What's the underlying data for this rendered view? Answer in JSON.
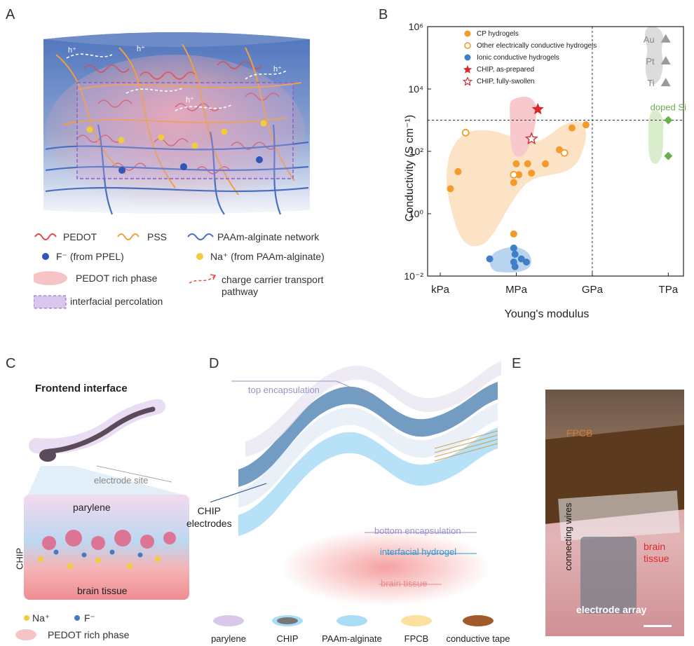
{
  "panels": {
    "a": {
      "letter": "A"
    },
    "b": {
      "letter": "B"
    },
    "c": {
      "letter": "C"
    },
    "d": {
      "letter": "D"
    },
    "e": {
      "letter": "E"
    }
  },
  "panel_a": {
    "hole_label": "h⁺",
    "legend": {
      "pedot": "PEDOT",
      "pss": "PSS",
      "network": "PAAm-alginate network",
      "fluoride": "F⁻ (from PPEL)",
      "sodium": "Na⁺ (from PAAm-alginate)",
      "rich_phase": "PEDOT rich phase",
      "transport_line1": "charge carrier transport",
      "transport_line2": "pathway",
      "percolation": "interfacial percolation"
    },
    "colors": {
      "pedot": "#e0474c",
      "pss": "#f0a040",
      "network": "#4a6fc0",
      "fluoride": "#2f56b8",
      "sodium": "#f2cc3c",
      "rich_phase": "#f6c4c4",
      "percolation": "#b8a0d8"
    }
  },
  "chart_data": {
    "type": "scatter",
    "xlabel": "Young's modulus",
    "ylabel": "Conductivity (S cm⁻¹)",
    "x_scale": "log",
    "y_scale": "log",
    "x_ticks": [
      "kPa",
      "MPa",
      "GPa",
      "TPa"
    ],
    "y_ticks": [
      "10⁻²",
      "10⁰",
      "10²",
      "10⁴",
      "10⁶"
    ],
    "xlim_log10_pa": [
      2.5,
      12.6
    ],
    "ylim_log10": [
      -2,
      6
    ],
    "reference_lines": {
      "x_log10_pa": 9,
      "y_log10": 3
    },
    "legend_position": "top-left",
    "legend": [
      "CP hydrogels",
      "Other electrically conductive hydrogels",
      "Ionic conductive hydrogels",
      "CHIP, as-prepared",
      "CHIP, fully-swollen"
    ],
    "series": [
      {
        "name": "CP hydrogels",
        "marker": "filled-circle",
        "color": "#f39a2a",
        "points": [
          [
            3.4,
            0.8
          ],
          [
            3.7,
            1.35
          ],
          [
            5.9,
            1.0
          ],
          [
            6.0,
            1.6
          ],
          [
            6.1,
            1.25
          ],
          [
            6.45,
            1.6
          ],
          [
            6.6,
            1.3
          ],
          [
            7.15,
            1.6
          ],
          [
            7.7,
            2.05
          ],
          [
            8.2,
            2.75
          ],
          [
            8.75,
            2.85
          ],
          [
            5.9,
            -0.65
          ]
        ]
      },
      {
        "name": "Other electrically conductive hydrogels",
        "marker": "open-circle",
        "color": "#f39a2a",
        "points": [
          [
            4.0,
            2.6
          ],
          [
            5.9,
            1.25
          ],
          [
            7.9,
            1.95
          ]
        ]
      },
      {
        "name": "Ionic conductive hydrogels",
        "marker": "filled-circle",
        "color": "#3f7fc8",
        "points": [
          [
            4.95,
            -1.45
          ],
          [
            5.9,
            -1.1
          ],
          [
            5.95,
            -1.3
          ],
          [
            5.9,
            -1.55
          ],
          [
            6.2,
            -1.45
          ],
          [
            6.4,
            -1.55
          ],
          [
            5.95,
            -1.7
          ]
        ]
      },
      {
        "name": "CHIP, as-prepared",
        "marker": "filled-star",
        "color": "#d42a2a",
        "points": [
          [
            6.85,
            3.35
          ]
        ]
      },
      {
        "name": "CHIP, fully-swollen",
        "marker": "open-star",
        "color": "#d42a2a",
        "points": [
          [
            6.6,
            2.4
          ]
        ]
      },
      {
        "name": "Metals",
        "marker": "triangle",
        "color": "#9a9a9a",
        "labels": [
          "Au",
          "Pt",
          "Ti"
        ],
        "points": [
          [
            11.9,
            5.6
          ],
          [
            11.9,
            4.9
          ],
          [
            11.9,
            4.2
          ]
        ]
      },
      {
        "name": "doped Si",
        "marker": "diamond",
        "color": "#6ab04a",
        "points": [
          [
            12.0,
            3.0
          ],
          [
            12.0,
            1.85
          ]
        ]
      }
    ],
    "annotations": [
      "Au",
      "Pt",
      "Ti",
      "doped Si"
    ]
  },
  "panel_c": {
    "title": "Frontend interface",
    "electrode_site": "electrode site",
    "parylene": "parylene",
    "chip": "CHIP",
    "brain_tissue": "brain tissue",
    "legend": {
      "sodium": "Na⁺",
      "fluoride": "F⁻",
      "rich_phase": "PEDOT rich phase"
    }
  },
  "panel_d": {
    "top_encapsulation": "top encapsulation",
    "chip_electrodes_line1": "CHIP",
    "chip_electrodes_line2": "electrodes",
    "bottom_encapsulation": "bottom encapsulation",
    "interfacial_hydrogel": "interfacial hydrogel",
    "brain_tissue": "brain tissue",
    "legend": [
      "parylene",
      "CHIP",
      "PAAm-alginate",
      "FPCB",
      "conductive tape"
    ],
    "legend_colors": [
      "#d9c8ec",
      "#777777",
      "#a9dcf5",
      "#fbe0a0",
      "#a05a2c"
    ]
  },
  "panel_e": {
    "fpcb": "FPCB",
    "connecting_wires": "connecting wires",
    "brain_tissue_line1": "brain",
    "brain_tissue_line2": "tissue",
    "electrode_array": "electrode array"
  }
}
